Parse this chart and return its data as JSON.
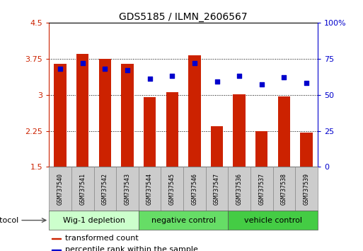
{
  "title": "GDS5185 / ILMN_2606567",
  "samples": [
    "GSM737540",
    "GSM737541",
    "GSM737542",
    "GSM737543",
    "GSM737544",
    "GSM737545",
    "GSM737546",
    "GSM737547",
    "GSM737536",
    "GSM737537",
    "GSM737538",
    "GSM737539"
  ],
  "red_values": [
    3.65,
    3.85,
    3.75,
    3.65,
    2.95,
    3.06,
    3.82,
    2.34,
    3.01,
    2.24,
    2.96,
    2.22
  ],
  "blue_values": [
    68,
    72,
    68,
    67,
    61,
    63,
    72,
    59,
    63,
    57,
    62,
    58
  ],
  "groups": [
    {
      "label": "Wig-1 depletion",
      "start": 0,
      "end": 4,
      "color": "#ccffcc"
    },
    {
      "label": "negative control",
      "start": 4,
      "end": 8,
      "color": "#66dd66"
    },
    {
      "label": "vehicle control",
      "start": 8,
      "end": 12,
      "color": "#44cc44"
    }
  ],
  "ylim_left": [
    1.5,
    4.5
  ],
  "ylim_right": [
    0,
    100
  ],
  "yticks_left": [
    1.5,
    2.25,
    3.0,
    3.75,
    4.5
  ],
  "yticks_right": [
    0,
    25,
    50,
    75,
    100
  ],
  "ytick_labels_left": [
    "1.5",
    "2.25",
    "3",
    "3.75",
    "4.5"
  ],
  "ytick_labels_right": [
    "0",
    "25",
    "50",
    "75",
    "100%"
  ],
  "bar_color": "#cc2200",
  "dot_color": "#0000cc",
  "bar_width": 0.55,
  "background_color": "#ffffff",
  "grid_color": "#000000",
  "title_fontsize": 10,
  "tick_fontsize": 8,
  "sample_fontsize": 6,
  "group_fontsize": 8,
  "legend_fontsize": 8,
  "protocol_label": "protocol",
  "legend_items": [
    {
      "color": "#cc2200",
      "label": "transformed count"
    },
    {
      "color": "#0000cc",
      "label": "percentile rank within the sample"
    }
  ]
}
